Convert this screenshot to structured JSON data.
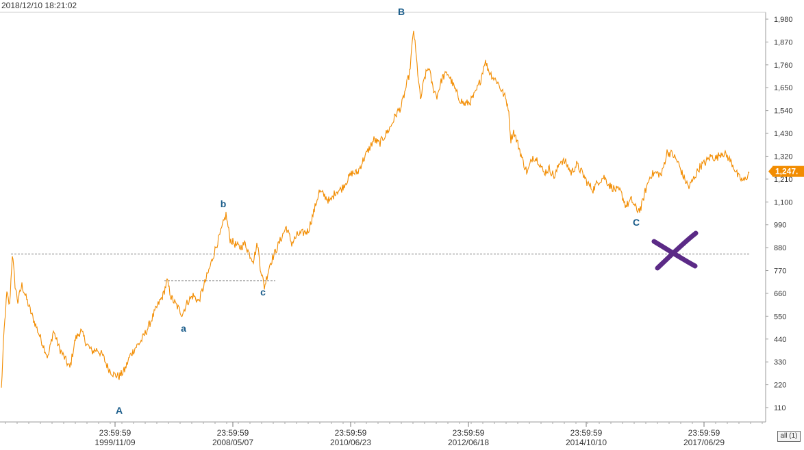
{
  "timestamp": "2018/12/10 18:21:02",
  "all_button": "all (1)",
  "colors": {
    "line": "#f28c00",
    "price_tag": "#f28c00",
    "marker": "#5b2a86",
    "wave_label": "#1a5c8a",
    "axis": "#999999",
    "guide": "#555555"
  },
  "chart_data": {
    "type": "line",
    "y_ticks": [
      110,
      220,
      330,
      440,
      550,
      660,
      770,
      880,
      990,
      1100,
      1210,
      1320,
      1430,
      1540,
      1650,
      1760,
      1870,
      1980
    ],
    "y_tick_labels": [
      "110",
      "220",
      "330",
      "440",
      "550",
      "660",
      "770",
      "880",
      "990",
      "1,100",
      "1,210",
      "1,320",
      "1,430",
      "1,540",
      "1,650",
      "1,760",
      "1,870",
      "1,980"
    ],
    "ylim": [
      20,
      2000
    ],
    "x_tick_labels": [
      {
        "time": "23:59:59",
        "date": "1999/11/09"
      },
      {
        "time": "23:59:59",
        "date": "2008/05/07"
      },
      {
        "time": "23:59:59",
        "date": "2010/06/23"
      },
      {
        "time": "23:59:59",
        "date": "2012/06/18"
      },
      {
        "time": "23:59:59",
        "date": "2014/10/10"
      },
      {
        "time": "23:59:59",
        "date": "2017/06/29"
      }
    ],
    "current_price_label": "1,247.",
    "current_price": 1247,
    "reference_level": 850,
    "secondary_level": 720,
    "series_points": [
      [
        0,
        200
      ],
      [
        4,
        480
      ],
      [
        8,
        660
      ],
      [
        12,
        600
      ],
      [
        16,
        850
      ],
      [
        20,
        700
      ],
      [
        24,
        620
      ],
      [
        30,
        700
      ],
      [
        36,
        640
      ],
      [
        44,
        560
      ],
      [
        52,
        490
      ],
      [
        60,
        420
      ],
      [
        68,
        350
      ],
      [
        76,
        480
      ],
      [
        84,
        400
      ],
      [
        92,
        350
      ],
      [
        100,
        300
      ],
      [
        108,
        440
      ],
      [
        116,
        480
      ],
      [
        124,
        420
      ],
      [
        132,
        380
      ],
      [
        140,
        390
      ],
      [
        148,
        360
      ],
      [
        156,
        300
      ],
      [
        164,
        270
      ],
      [
        172,
        260
      ],
      [
        180,
        290
      ],
      [
        188,
        360
      ],
      [
        196,
        400
      ],
      [
        204,
        430
      ],
      [
        212,
        480
      ],
      [
        220,
        540
      ],
      [
        228,
        600
      ],
      [
        236,
        650
      ],
      [
        242,
        720
      ],
      [
        248,
        640
      ],
      [
        256,
        600
      ],
      [
        264,
        560
      ],
      [
        272,
        620
      ],
      [
        280,
        650
      ],
      [
        288,
        620
      ],
      [
        296,
        700
      ],
      [
        304,
        780
      ],
      [
        312,
        870
      ],
      [
        320,
        950
      ],
      [
        328,
        1040
      ],
      [
        334,
        920
      ],
      [
        340,
        900
      ],
      [
        348,
        880
      ],
      [
        356,
        900
      ],
      [
        362,
        850
      ],
      [
        368,
        820
      ],
      [
        374,
        900
      ],
      [
        378,
        790
      ],
      [
        384,
        690
      ],
      [
        392,
        800
      ],
      [
        400,
        860
      ],
      [
        408,
        920
      ],
      [
        416,
        980
      ],
      [
        424,
        900
      ],
      [
        432,
        940
      ],
      [
        440,
        950
      ],
      [
        448,
        960
      ],
      [
        456,
        1050
      ],
      [
        464,
        1150
      ],
      [
        472,
        1130
      ],
      [
        480,
        1100
      ],
      [
        488,
        1150
      ],
      [
        496,
        1160
      ],
      [
        504,
        1200
      ],
      [
        512,
        1240
      ],
      [
        520,
        1240
      ],
      [
        528,
        1300
      ],
      [
        536,
        1350
      ],
      [
        544,
        1400
      ],
      [
        552,
        1380
      ],
      [
        560,
        1420
      ],
      [
        568,
        1460
      ],
      [
        576,
        1520
      ],
      [
        584,
        1560
      ],
      [
        590,
        1640
      ],
      [
        596,
        1720
      ],
      [
        602,
        1930
      ],
      [
        606,
        1790
      ],
      [
        612,
        1590
      ],
      [
        618,
        1700
      ],
      [
        624,
        1750
      ],
      [
        630,
        1650
      ],
      [
        636,
        1610
      ],
      [
        644,
        1700
      ],
      [
        652,
        1720
      ],
      [
        660,
        1660
      ],
      [
        668,
        1600
      ],
      [
        676,
        1570
      ],
      [
        684,
        1580
      ],
      [
        692,
        1620
      ],
      [
        700,
        1690
      ],
      [
        706,
        1780
      ],
      [
        712,
        1730
      ],
      [
        718,
        1700
      ],
      [
        724,
        1680
      ],
      [
        730,
        1640
      ],
      [
        736,
        1600
      ],
      [
        740,
        1560
      ],
      [
        744,
        1400
      ],
      [
        748,
        1440
      ],
      [
        756,
        1360
      ],
      [
        762,
        1290
      ],
      [
        768,
        1240
      ],
      [
        776,
        1320
      ],
      [
        784,
        1300
      ],
      [
        792,
        1240
      ],
      [
        800,
        1260
      ],
      [
        808,
        1220
      ],
      [
        816,
        1300
      ],
      [
        824,
        1290
      ],
      [
        832,
        1240
      ],
      [
        840,
        1280
      ],
      [
        848,
        1240
      ],
      [
        856,
        1190
      ],
      [
        864,
        1160
      ],
      [
        872,
        1200
      ],
      [
        880,
        1220
      ],
      [
        888,
        1180
      ],
      [
        896,
        1160
      ],
      [
        904,
        1150
      ],
      [
        912,
        1080
      ],
      [
        920,
        1110
      ],
      [
        928,
        1060
      ],
      [
        934,
        1070
      ],
      [
        940,
        1150
      ],
      [
        948,
        1230
      ],
      [
        956,
        1240
      ],
      [
        964,
        1230
      ],
      [
        972,
        1340
      ],
      [
        980,
        1330
      ],
      [
        988,
        1290
      ],
      [
        996,
        1220
      ],
      [
        1004,
        1170
      ],
      [
        1012,
        1220
      ],
      [
        1020,
        1270
      ],
      [
        1028,
        1290
      ],
      [
        1036,
        1320
      ],
      [
        1044,
        1310
      ],
      [
        1052,
        1340
      ],
      [
        1060,
        1320
      ],
      [
        1068,
        1280
      ],
      [
        1076,
        1220
      ],
      [
        1084,
        1200
      ],
      [
        1092,
        1240
      ]
    ],
    "wave_labels": [
      {
        "text": "A",
        "value": 80,
        "xi": 174
      },
      {
        "text": "a",
        "value": 475,
        "xi": 268
      },
      {
        "text": "b",
        "value": 1075,
        "xi": 326
      },
      {
        "text": "c",
        "value": 650,
        "xi": 384
      },
      {
        "text": "B",
        "value": 2000,
        "xi": 586
      },
      {
        "text": "C",
        "value": 985,
        "xi": 929
      }
    ]
  }
}
